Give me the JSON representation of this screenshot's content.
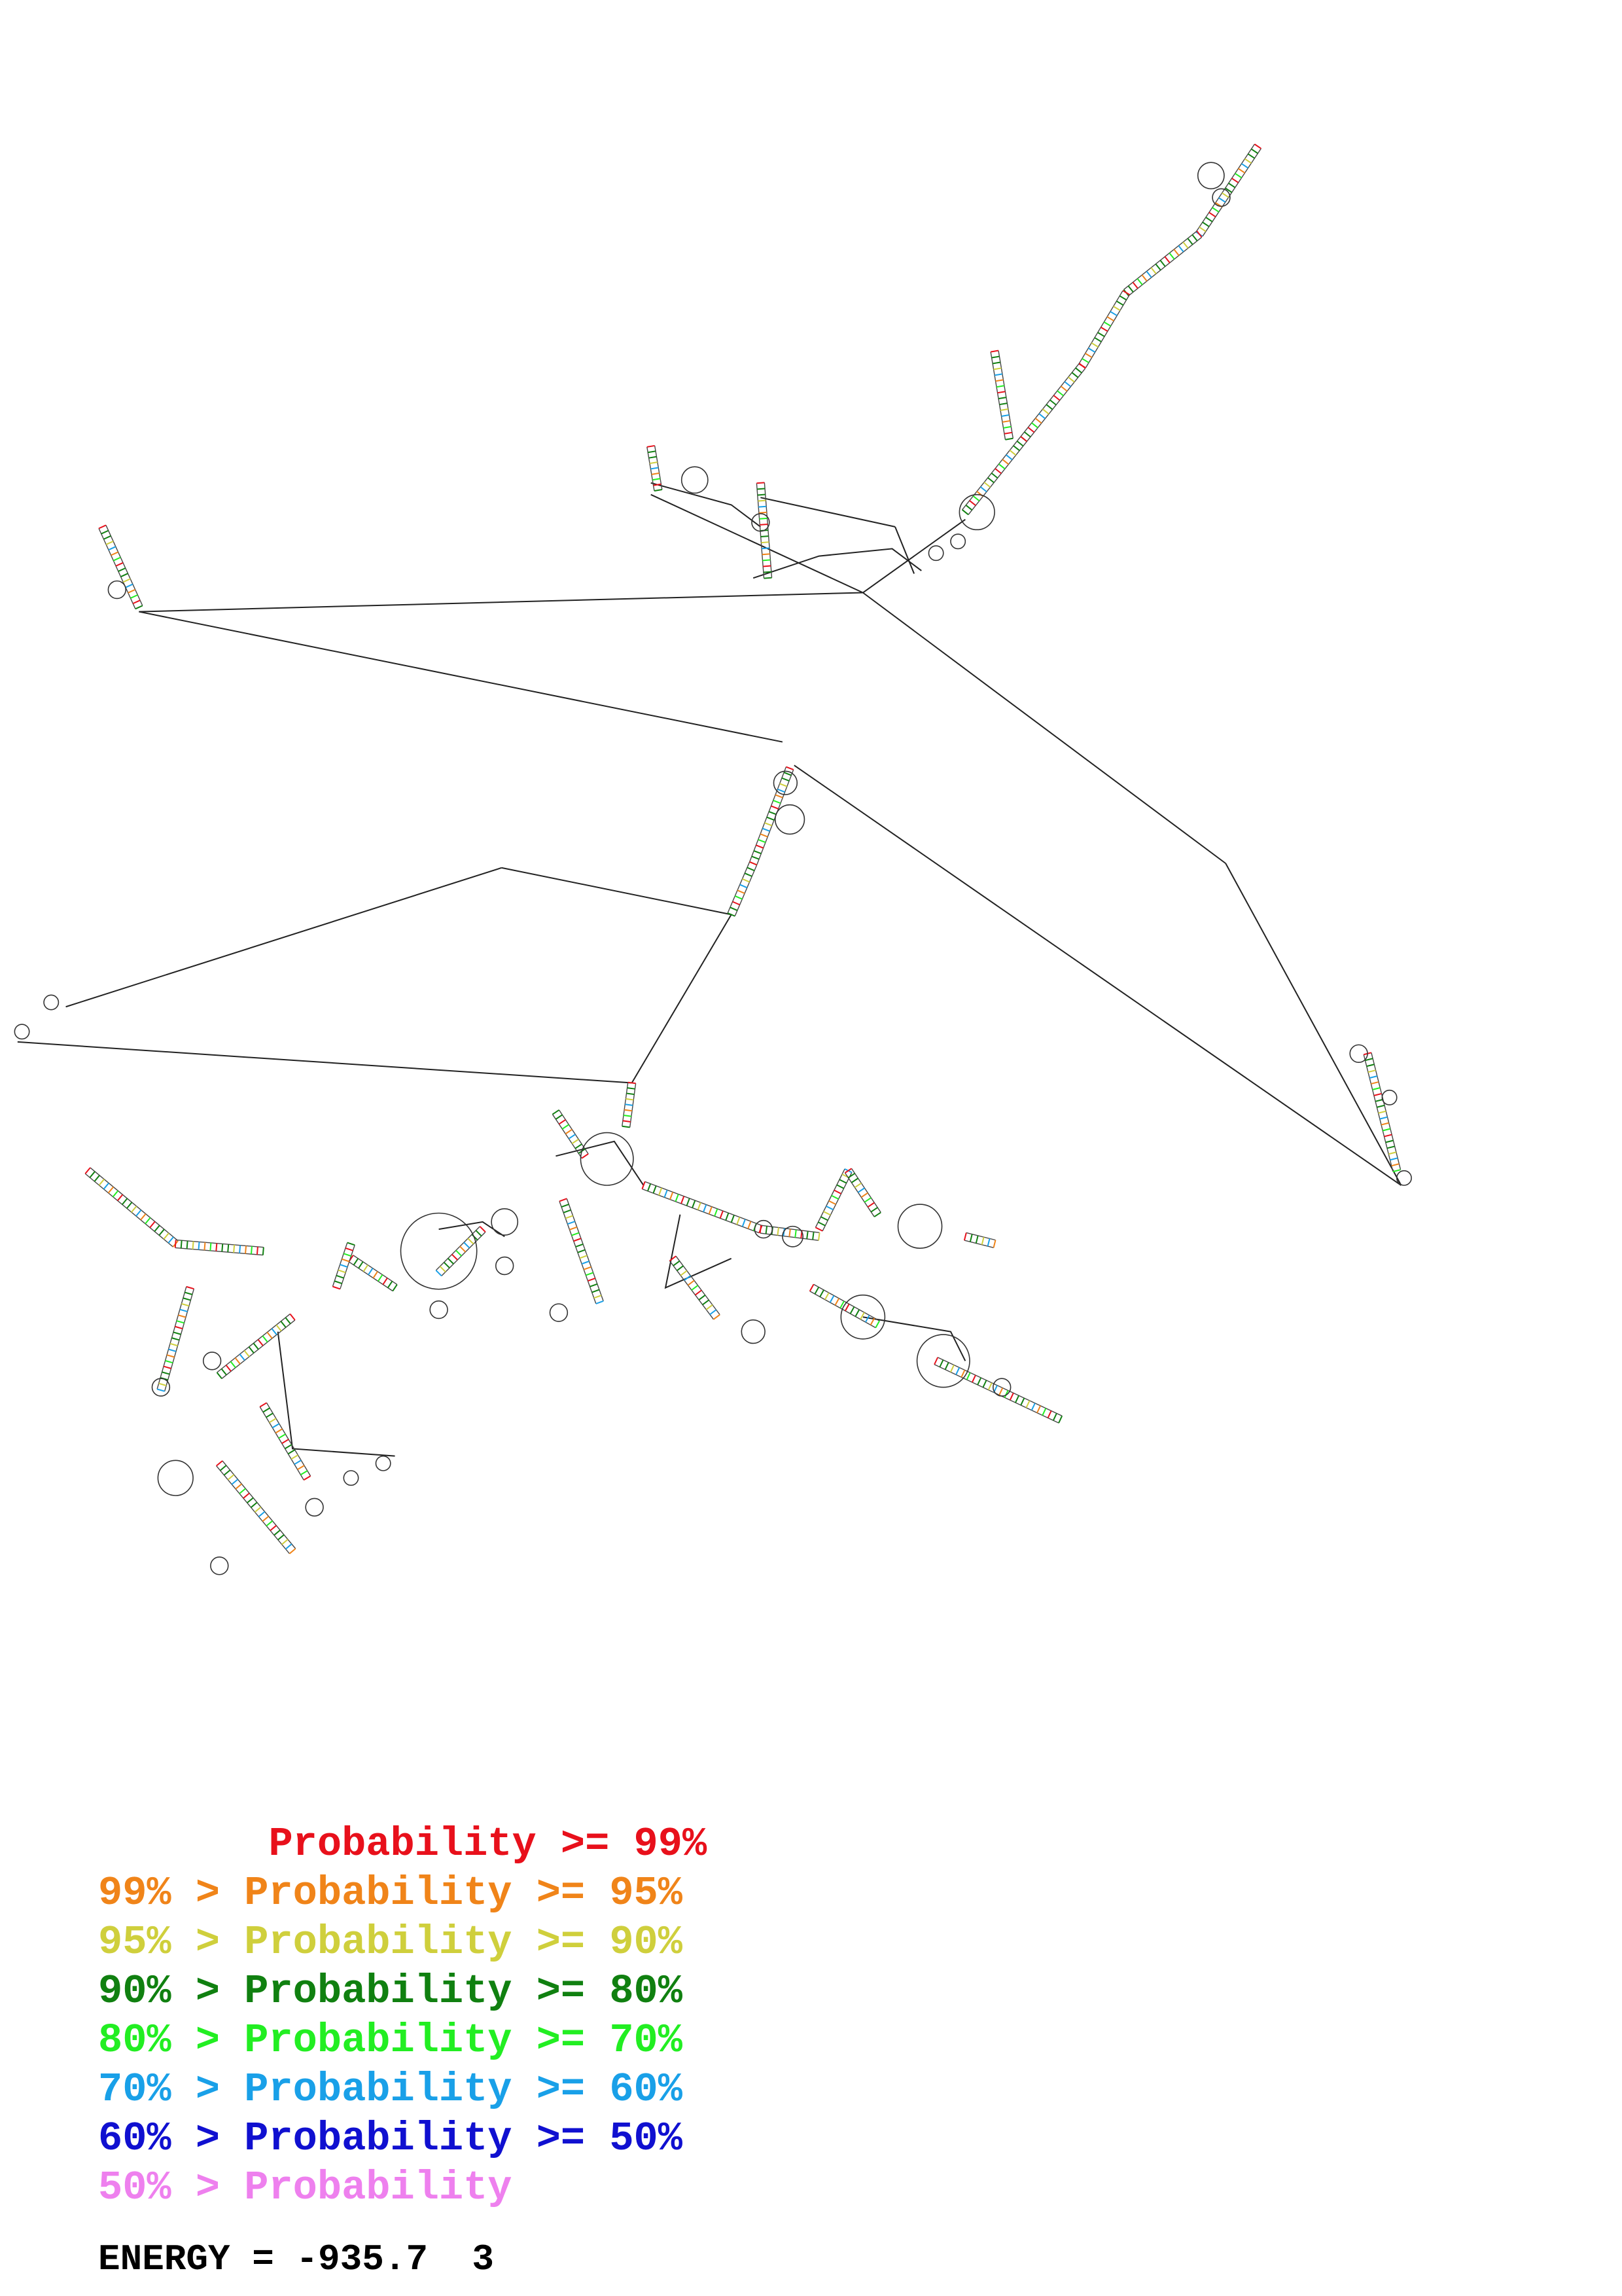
{
  "legend": {
    "rows": [
      {
        "prefix": "       ",
        "text": "Probability >= 99%",
        "color": "#e8101b"
      },
      {
        "prefix": "99% > ",
        "text": "Probability >= 95%",
        "color": "#f08419"
      },
      {
        "prefix": "95% > ",
        "text": "Probability >= 90%",
        "color": "#cfcf3c"
      },
      {
        "prefix": "90% > ",
        "text": "Probability >= 80%",
        "color": "#108010"
      },
      {
        "prefix": "80% > ",
        "text": "Probability >= 70%",
        "color": "#22ee22"
      },
      {
        "prefix": "70% > ",
        "text": "Probability >= 60%",
        "color": "#19a0e8"
      },
      {
        "prefix": "60% > ",
        "text": "Probability >= 50%",
        "color": "#1010d0"
      },
      {
        "prefix": "50% > ",
        "text": "Probability",
        "color": "#ee80ee"
      }
    ]
  },
  "energy": {
    "label": "ENERGY = ",
    "value": "-935.7",
    "suffix": "3"
  }
}
